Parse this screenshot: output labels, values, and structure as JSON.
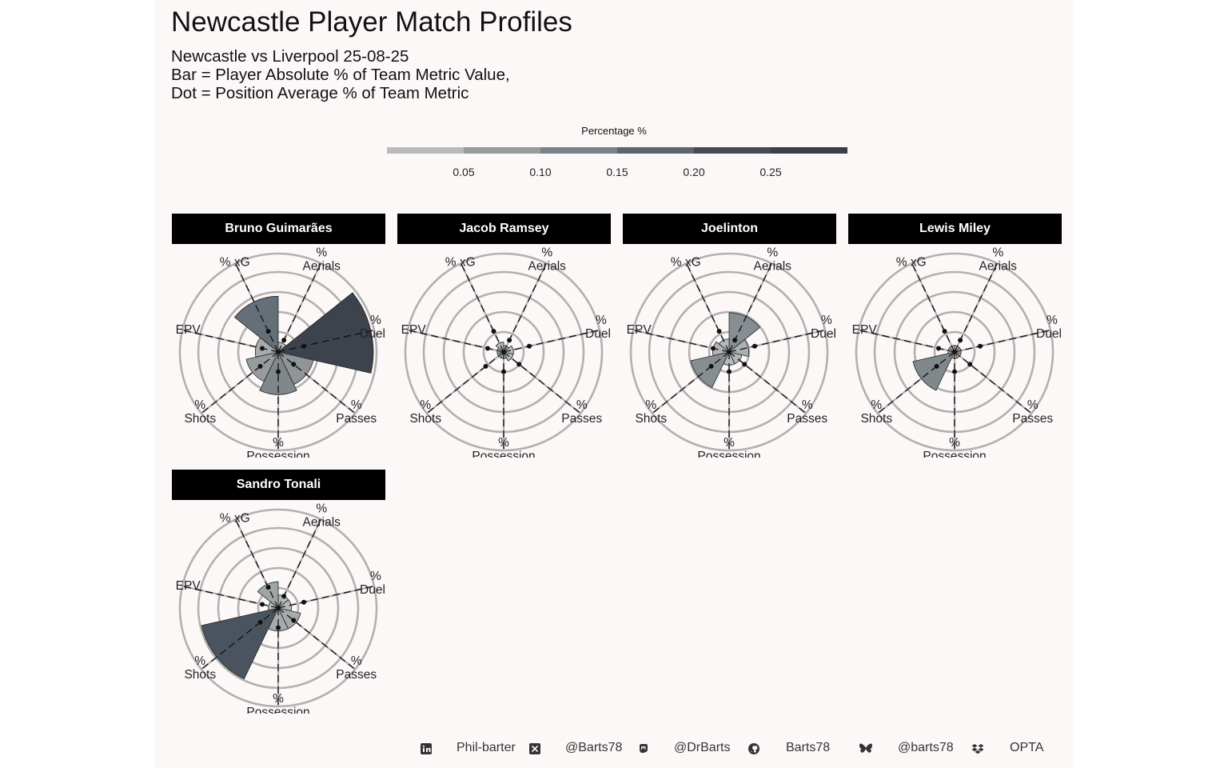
{
  "title": "Newcastle Player Match Profiles",
  "subtitle_lines": [
    "Newcastle vs Liverpool 25-08-25",
    "Bar = Player Absolute % of Team Metric Value,",
    "Dot = Position Average % of Team Metric"
  ],
  "legend": {
    "title": "Percentage %",
    "ticks": [
      "0.05",
      "0.10",
      "0.15",
      "0.20",
      "0.25"
    ],
    "colors": [
      "#b9bbbb",
      "#979c9d",
      "#79838a",
      "#5c6670",
      "#454c57",
      "#3a3f4a"
    ]
  },
  "chart_data": {
    "type": "polar-bar",
    "metrics": [
      "% Aerials",
      "% Duels",
      "% Passes",
      "% Possession",
      "% Shots",
      "% EPV",
      "% xG"
    ],
    "radial_range": [
      0,
      0.3
    ],
    "grid": true,
    "players": [
      {
        "name": "Bruno Guimarães",
        "bar": [
          0.03,
          0.29,
          0.11,
          0.13,
          0.1,
          0.07,
          0.17
        ],
        "dot": [
          0.04,
          0.08,
          0.06,
          0.06,
          0.07,
          0.05,
          0.07
        ]
      },
      {
        "name": "Jacob Ramsey",
        "bar": [
          0.02,
          0.03,
          0.03,
          0.02,
          0.02,
          0.02,
          0.03
        ],
        "dot": [
          0.04,
          0.08,
          0.06,
          0.06,
          0.07,
          0.05,
          0.07
        ]
      },
      {
        "name": "Joelinton",
        "bar": [
          0.12,
          0.06,
          0.04,
          0.04,
          0.12,
          0.05,
          0.04
        ],
        "dot": [
          0.04,
          0.08,
          0.06,
          0.06,
          0.07,
          0.05,
          0.07
        ]
      },
      {
        "name": "Lewis Miley",
        "bar": [
          0.02,
          0.02,
          0.02,
          0.02,
          0.13,
          0.02,
          0.02
        ],
        "dot": [
          0.04,
          0.08,
          0.06,
          0.06,
          0.07,
          0.05,
          0.07
        ]
      },
      {
        "name": "Sandro Tonali",
        "bar": [
          0.04,
          0.04,
          0.07,
          0.07,
          0.24,
          0.03,
          0.08
        ],
        "dot": [
          0.04,
          0.08,
          0.06,
          0.06,
          0.07,
          0.05,
          0.07
        ]
      }
    ]
  },
  "footer": [
    {
      "icon": "linkedin-icon",
      "text": "Phil-barter"
    },
    {
      "icon": "x-twitter-icon",
      "text": "@Barts78"
    },
    {
      "icon": "mastodon-icon",
      "text": "@DrBarts"
    },
    {
      "icon": "github-icon",
      "text": "Barts78"
    },
    {
      "icon": "bluesky-icon",
      "text": "@barts78"
    },
    {
      "icon": "dropbox-icon",
      "text": "OPTA"
    }
  ]
}
